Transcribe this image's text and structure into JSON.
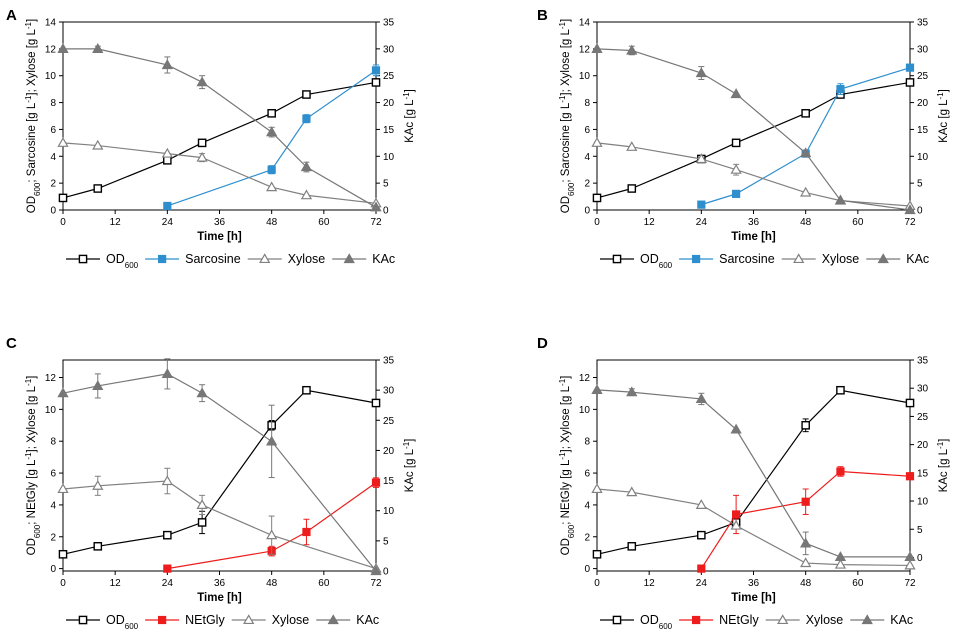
{
  "colors": {
    "od": "#000000",
    "sarcosine": "#2f8fce",
    "netgly": "#ee1c1c",
    "xylose": "#808080",
    "kac": "#777777"
  },
  "chart_data": [
    {
      "panel": "A",
      "type": "line",
      "xlabel": "Time [h]",
      "ylabel_left_parts": [
        "OD",
        "600",
        "; Sarcosine [g L",
        "-1",
        "]; Xylose [g L",
        "-1",
        "]"
      ],
      "ylabel_right_parts": [
        "KAc [g L",
        "-1",
        "]"
      ],
      "x_ticks": [
        0,
        12,
        24,
        36,
        48,
        60,
        72
      ],
      "xlim": [
        0,
        72
      ],
      "ylim_left": [
        0,
        14
      ],
      "y_ticks_left": [
        0,
        2,
        4,
        6,
        8,
        10,
        12,
        14
      ],
      "ylim_right": [
        0,
        35
      ],
      "y_ticks_right": [
        0,
        5,
        10,
        15,
        20,
        25,
        30,
        35
      ],
      "series": [
        {
          "name": "OD600",
          "legend_parts": [
            "OD",
            "600"
          ],
          "marker": "square-open",
          "color_key": "od",
          "axis": "left",
          "x": [
            0,
            8,
            24,
            32,
            48,
            56,
            72
          ],
          "y": [
            0.9,
            1.6,
            3.7,
            5.0,
            7.2,
            8.6,
            9.5
          ],
          "err": [
            0,
            0,
            0,
            0,
            0,
            0,
            0
          ]
        },
        {
          "name": "Sarcosine",
          "legend_parts": [
            "Sarcosine"
          ],
          "marker": "square-filled",
          "color_key": "sarcosine",
          "axis": "left",
          "x": [
            24,
            48,
            56,
            72
          ],
          "y": [
            0.3,
            3.0,
            6.8,
            10.4
          ],
          "err": [
            0,
            0.3,
            0.3,
            0.4
          ]
        },
        {
          "name": "Xylose",
          "legend_parts": [
            "Xylose"
          ],
          "marker": "triangle-open",
          "color_key": "xylose",
          "axis": "left",
          "x": [
            0,
            8,
            24,
            32,
            48,
            56,
            72
          ],
          "y": [
            5.0,
            4.8,
            4.2,
            3.9,
            1.7,
            1.1,
            0.5
          ],
          "err": [
            0,
            0,
            0,
            0.3,
            0,
            0,
            0
          ]
        },
        {
          "name": "KAc",
          "legend_parts": [
            "KAc"
          ],
          "marker": "triangle-filled",
          "color_key": "kac",
          "axis": "right",
          "x": [
            0,
            8,
            24,
            32,
            48,
            56,
            72
          ],
          "y": [
            30.0,
            30.0,
            27.0,
            23.8,
            14.5,
            8.0,
            0.5
          ],
          "err": [
            0,
            0.5,
            1.5,
            1.2,
            0.9,
            0.9,
            0
          ]
        }
      ]
    },
    {
      "panel": "B",
      "type": "line",
      "xlabel": "Time [h]",
      "ylabel_left_parts": [
        "OD",
        "600",
        "; Sarcosine [g L",
        "-1",
        "]; Xylose [g L",
        "-1",
        "]"
      ],
      "ylabel_right_parts": [
        "KAc [g L",
        "-1",
        "]"
      ],
      "x_ticks": [
        0,
        12,
        24,
        36,
        48,
        60,
        72
      ],
      "xlim": [
        0,
        72
      ],
      "ylim_left": [
        0,
        14
      ],
      "y_ticks_left": [
        0,
        2,
        4,
        6,
        8,
        10,
        12,
        14
      ],
      "ylim_right": [
        0,
        35
      ],
      "y_ticks_right": [
        0,
        5,
        10,
        15,
        20,
        25,
        30,
        35
      ],
      "series": [
        {
          "name": "OD600",
          "legend_parts": [
            "OD",
            "600"
          ],
          "marker": "square-open",
          "color_key": "od",
          "axis": "left",
          "x": [
            0,
            8,
            24,
            32,
            48,
            56,
            72
          ],
          "y": [
            0.9,
            1.6,
            3.8,
            5.0,
            7.2,
            8.6,
            9.5
          ],
          "err": [
            0,
            0,
            0,
            0,
            0,
            0,
            0
          ]
        },
        {
          "name": "Sarcosine",
          "legend_parts": [
            "Sarcosine"
          ],
          "marker": "square-filled",
          "color_key": "sarcosine",
          "axis": "left",
          "x": [
            24,
            32,
            48,
            56,
            72
          ],
          "y": [
            0.4,
            1.2,
            4.2,
            9.0,
            10.6
          ],
          "err": [
            0,
            0,
            0,
            0.4,
            0
          ]
        },
        {
          "name": "Xylose",
          "legend_parts": [
            "Xylose"
          ],
          "marker": "triangle-open",
          "color_key": "xylose",
          "axis": "left",
          "x": [
            0,
            8,
            24,
            32,
            48,
            56,
            72
          ],
          "y": [
            5.0,
            4.7,
            3.8,
            3.0,
            1.3,
            0.7,
            0.3
          ],
          "err": [
            0,
            0,
            0,
            0.4,
            0,
            0,
            0
          ]
        },
        {
          "name": "KAc",
          "legend_parts": [
            "KAc"
          ],
          "marker": "triangle-filled",
          "color_key": "kac",
          "axis": "right",
          "x": [
            0,
            8,
            24,
            32,
            48,
            56,
            72
          ],
          "y": [
            30.0,
            29.7,
            25.5,
            21.6,
            10.6,
            1.8,
            0
          ],
          "err": [
            0,
            0.8,
            1.2,
            0,
            0,
            0,
            0
          ]
        }
      ]
    },
    {
      "panel": "C",
      "type": "line",
      "xlabel": "Time [h]",
      "ylabel_left_parts": [
        "OD",
        "600",
        "; NEtGly [g L",
        "-1",
        "]; Xylose [g L",
        "-1",
        "]"
      ],
      "ylabel_right_parts": [
        "KAc [g L",
        "-1",
        "]"
      ],
      "x_ticks": [
        0,
        12,
        24,
        36,
        48,
        60,
        72
      ],
      "xlim": [
        0,
        72
      ],
      "ylim_left": [
        -0.15,
        13.1
      ],
      "y_ticks_left": [
        0,
        2,
        4,
        6,
        8,
        10,
        12
      ],
      "ylim_right": [
        0,
        35
      ],
      "y_ticks_right": [
        0,
        5,
        10,
        15,
        20,
        25,
        30,
        35
      ],
      "series": [
        {
          "name": "OD600",
          "legend_parts": [
            "OD",
            "600"
          ],
          "marker": "square-open",
          "color_key": "od",
          "axis": "left",
          "x": [
            0,
            8,
            24,
            32,
            48,
            56,
            72
          ],
          "y": [
            0.9,
            1.4,
            2.1,
            2.9,
            9.0,
            11.2,
            10.4
          ],
          "err": [
            0,
            0,
            0,
            0.7,
            0.3,
            0,
            0
          ]
        },
        {
          "name": "NEtGly",
          "legend_parts": [
            "NEtGly"
          ],
          "marker": "square-filled",
          "color_key": "netgly",
          "axis": "left",
          "x": [
            24,
            48,
            56,
            72
          ],
          "y": [
            0,
            1.1,
            2.3,
            5.4
          ],
          "err": [
            0,
            0.3,
            0.8,
            0.3
          ]
        },
        {
          "name": "Xylose",
          "legend_parts": [
            "Xylose"
          ],
          "marker": "triangle-open",
          "color_key": "xylose",
          "axis": "left",
          "x": [
            0,
            8,
            24,
            32,
            48,
            72
          ],
          "y": [
            5.0,
            5.2,
            5.5,
            4.0,
            2.1,
            0
          ],
          "err": [
            0,
            0.6,
            0.8,
            0.6,
            1.2,
            0
          ]
        },
        {
          "name": "KAc",
          "legend_parts": [
            "KAc"
          ],
          "marker": "triangle-filled",
          "color_key": "kac",
          "axis": "right",
          "x": [
            0,
            8,
            24,
            32,
            48,
            72
          ],
          "y": [
            29.5,
            30.7,
            32.7,
            29.5,
            21.5,
            0
          ],
          "err": [
            0,
            2.0,
            2.5,
            1.4,
            6.0,
            0
          ]
        }
      ]
    },
    {
      "panel": "D",
      "type": "line",
      "xlabel": "Time [h]",
      "ylabel_left_parts": [
        "OD",
        "600",
        "; NEtGly [g L",
        "-1",
        "]; Xylose [g L",
        "-1",
        "]"
      ],
      "ylabel_right_parts": [
        "KAc [g L",
        "-1",
        "]"
      ],
      "x_ticks": [
        0,
        12,
        24,
        36,
        48,
        60,
        72
      ],
      "xlim": [
        0,
        72
      ],
      "ylim_left": [
        -0.15,
        13.1
      ],
      "y_ticks_left": [
        0,
        2,
        4,
        6,
        8,
        10,
        12
      ],
      "ylim_right": [
        -2.4,
        35
      ],
      "y_ticks_right": [
        0,
        5,
        10,
        15,
        20,
        25,
        30,
        35
      ],
      "series": [
        {
          "name": "OD600",
          "legend_parts": [
            "OD",
            "600"
          ],
          "marker": "square-open",
          "color_key": "od",
          "axis": "left",
          "x": [
            0,
            8,
            24,
            32,
            48,
            56,
            72
          ],
          "y": [
            0.9,
            1.4,
            2.1,
            2.9,
            9.0,
            11.2,
            10.4
          ],
          "err": [
            0,
            0,
            0,
            0,
            0.4,
            0,
            0
          ]
        },
        {
          "name": "NEtGly",
          "legend_parts": [
            "NEtGly"
          ],
          "marker": "square-filled",
          "color_key": "netgly",
          "axis": "left",
          "x": [
            24,
            32,
            48,
            56,
            72
          ],
          "y": [
            0,
            3.4,
            4.2,
            6.1,
            5.8
          ],
          "err": [
            0,
            1.2,
            0.8,
            0.3,
            0
          ]
        },
        {
          "name": "Xylose",
          "legend_parts": [
            "Xylose"
          ],
          "marker": "triangle-open",
          "color_key": "xylose",
          "axis": "left",
          "x": [
            0,
            8,
            24,
            32,
            48,
            56,
            72
          ],
          "y": [
            5.0,
            4.8,
            4.0,
            2.7,
            0.35,
            0.25,
            0.2
          ],
          "err": [
            0,
            0,
            0,
            0,
            0,
            0,
            0
          ]
        },
        {
          "name": "KAc",
          "legend_parts": [
            "KAc"
          ],
          "marker": "triangle-filled",
          "color_key": "kac",
          "axis": "right",
          "x": [
            0,
            8,
            24,
            32,
            48,
            56,
            72
          ],
          "y": [
            29.7,
            29.3,
            28.1,
            22.7,
            2.5,
            0.1,
            0.1
          ],
          "err": [
            0,
            0.6,
            1.0,
            0,
            2.0,
            0,
            0
          ]
        }
      ]
    }
  ]
}
